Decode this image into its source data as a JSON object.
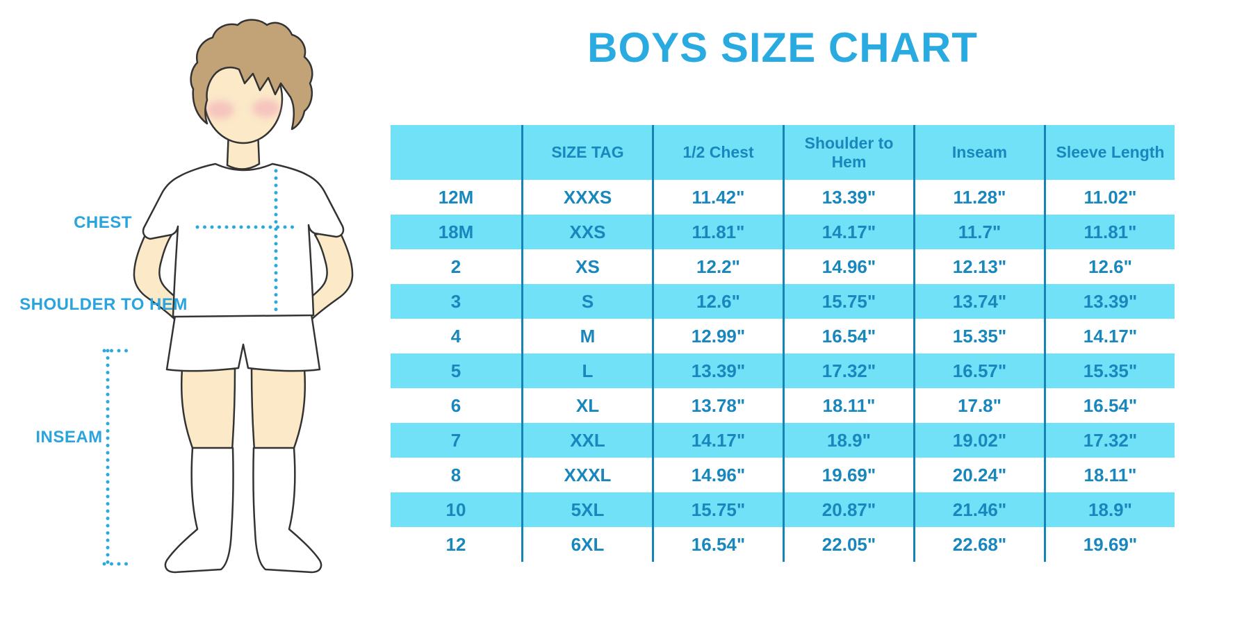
{
  "title": "BOYS SIZE CHART",
  "figure_labels": {
    "chest": "CHEST",
    "shoulder_to_hem": "SHOULDER TO HEM",
    "inseam": "INSEAM"
  },
  "colors": {
    "title_blue": "#29ABE2",
    "label_cyan": "#29A4DC",
    "dot_blue": "#2AA9DF",
    "cell_blue": "#71E1F8",
    "table_text_blue": "#1787BD",
    "separator_blue": "#1583B6",
    "skin": "#FBE9C8",
    "hair": "#C2A377",
    "row_alt_white": "#FFFFFF"
  },
  "chart_data": {
    "type": "table",
    "title": "BOYS SIZE CHART",
    "units": "inches",
    "columns": [
      "",
      "SIZE TAG",
      "1/2 Chest",
      "Shoulder to Hem",
      "Inseam",
      "Sleeve Length"
    ],
    "rows": [
      [
        "12M",
        "XXXS",
        "11.42\"",
        "13.39\"",
        "11.28\"",
        "11.02\""
      ],
      [
        "18M",
        "XXS",
        "11.81\"",
        "14.17\"",
        "11.7\"",
        "11.81\""
      ],
      [
        "2",
        "XS",
        "12.2\"",
        "14.96\"",
        "12.13\"",
        "12.6\""
      ],
      [
        "3",
        "S",
        "12.6\"",
        "15.75\"",
        "13.74\"",
        "13.39\""
      ],
      [
        "4",
        "M",
        "12.99\"",
        "16.54\"",
        "15.35\"",
        "14.17\""
      ],
      [
        "5",
        "L",
        "13.39\"",
        "17.32\"",
        "16.57\"",
        "15.35\""
      ],
      [
        "6",
        "XL",
        "13.78\"",
        "18.11\"",
        "17.8\"",
        "16.54\""
      ],
      [
        "7",
        "XXL",
        "14.17\"",
        "18.9\"",
        "19.02\"",
        "17.32\""
      ],
      [
        "8",
        "XXXL",
        "14.96\"",
        "19.69\"",
        "20.24\"",
        "18.11\""
      ],
      [
        "10",
        "5XL",
        "15.75\"",
        "20.87\"",
        "21.46\"",
        "18.9\""
      ],
      [
        "12",
        "6XL",
        "16.54\"",
        "22.05\"",
        "22.68\"",
        "19.69\""
      ]
    ],
    "layout": {
      "row_shading": "alternating, header and even data rows light blue, others white",
      "grid": "vertical column separators only, no outer border"
    }
  }
}
